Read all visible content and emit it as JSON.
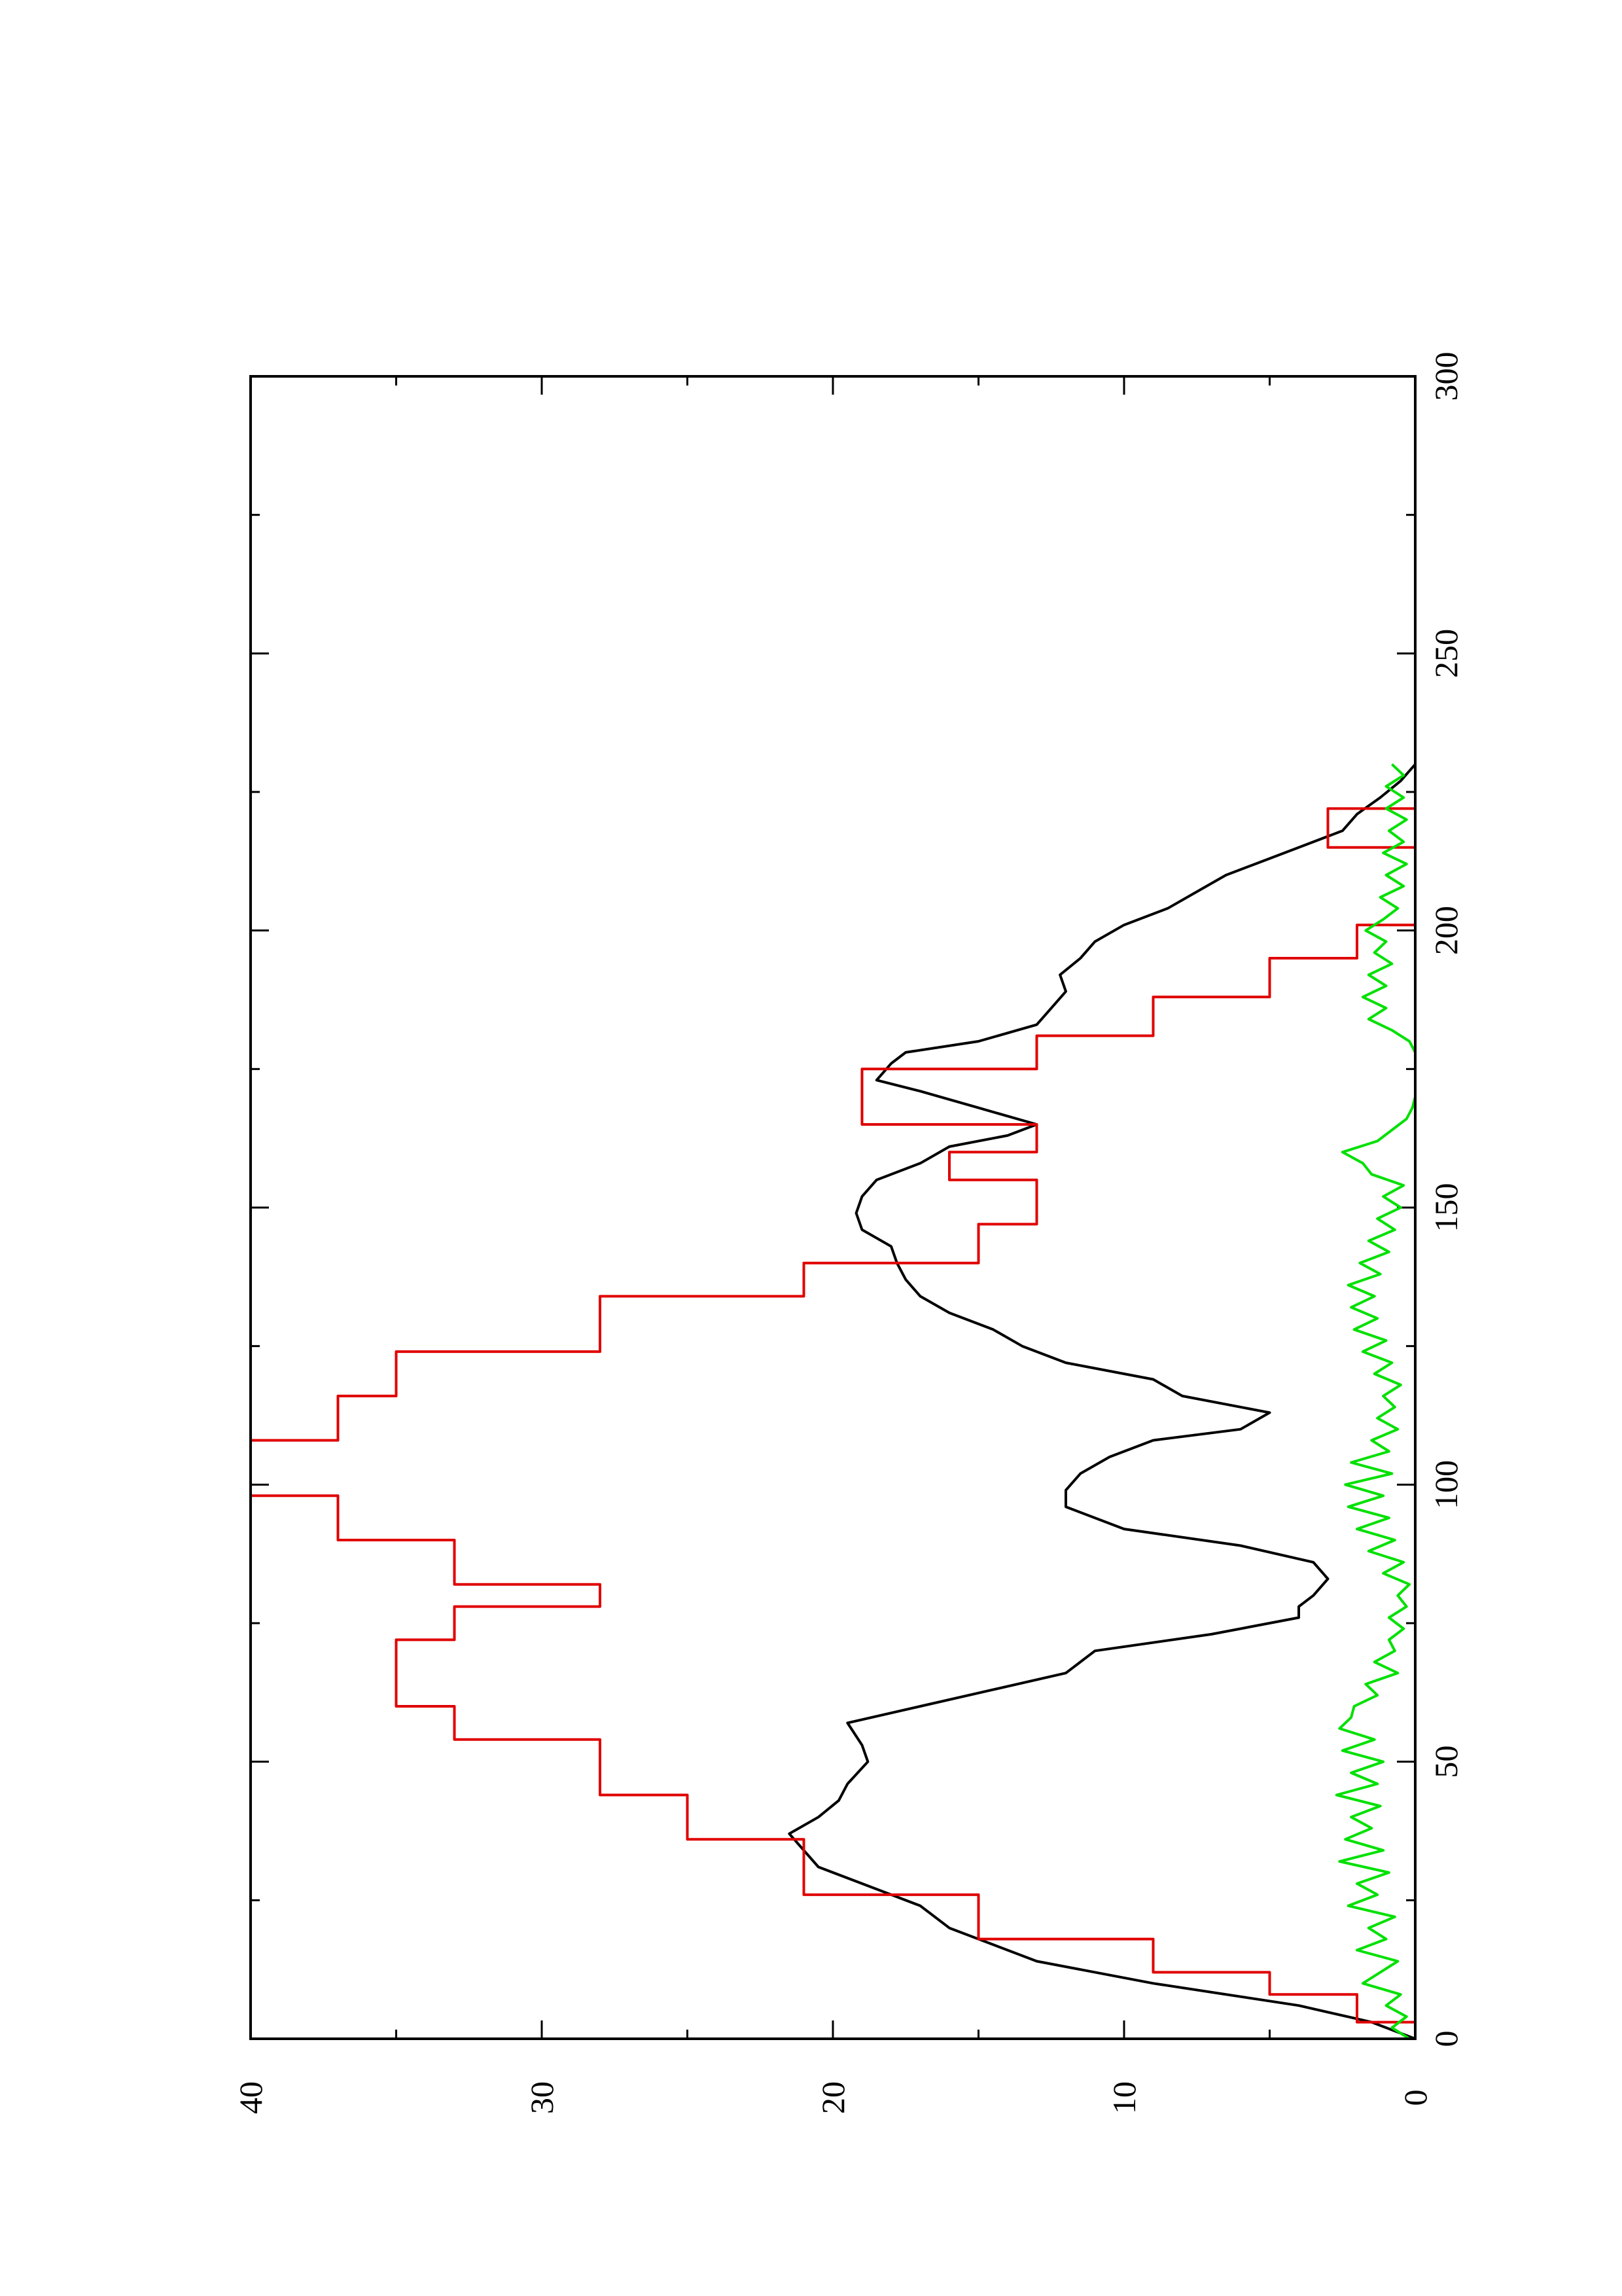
{
  "chart_data": {
    "type": "line",
    "title": "",
    "xlabel": "",
    "ylabel": "",
    "orientation": "rotated-90-clockwise",
    "xlim": [
      0,
      300
    ],
    "ylim": [
      0,
      40
    ],
    "x_ticks": [
      "0",
      "50",
      "100",
      "150",
      "200",
      "250",
      "300"
    ],
    "y_ticks": [
      "0",
      "10",
      "20",
      "30",
      "40"
    ],
    "grid": false,
    "legend": "none",
    "series": [
      {
        "color": "#000000",
        "points": [
          [
            0,
            0
          ],
          [
            3,
            1.5
          ],
          [
            6,
            4
          ],
          [
            10,
            9
          ],
          [
            14,
            13
          ],
          [
            17,
            14.5
          ],
          [
            20,
            16
          ],
          [
            24,
            17
          ],
          [
            27,
            18.5
          ],
          [
            31,
            20.5
          ],
          [
            34,
            21
          ],
          [
            37,
            21.5
          ],
          [
            40,
            20.5
          ],
          [
            43,
            19.8
          ],
          [
            46,
            19.5
          ],
          [
            50,
            18.8
          ],
          [
            53,
            19
          ],
          [
            57,
            19.5
          ],
          [
            60,
            17
          ],
          [
            63,
            14.5
          ],
          [
            66,
            12
          ],
          [
            70,
            11
          ],
          [
            73,
            7
          ],
          [
            76,
            4
          ],
          [
            78,
            4
          ],
          [
            80,
            3.5
          ],
          [
            83,
            3
          ],
          [
            86,
            3.5
          ],
          [
            89,
            6
          ],
          [
            92,
            10
          ],
          [
            96,
            12
          ],
          [
            99,
            12
          ],
          [
            102,
            11.5
          ],
          [
            105,
            10.5
          ],
          [
            108,
            9
          ],
          [
            110,
            6
          ],
          [
            113,
            5
          ],
          [
            116,
            8
          ],
          [
            119,
            9
          ],
          [
            122,
            12
          ],
          [
            125,
            13.5
          ],
          [
            128,
            14.5
          ],
          [
            131,
            16
          ],
          [
            134,
            17
          ],
          [
            137,
            17.5
          ],
          [
            140,
            17.8
          ],
          [
            143,
            18
          ],
          [
            146,
            19
          ],
          [
            149,
            19.2
          ],
          [
            152,
            19
          ],
          [
            155,
            18.5
          ],
          [
            158,
            17
          ],
          [
            161,
            16
          ],
          [
            163,
            14
          ],
          [
            165,
            13
          ],
          [
            168,
            15
          ],
          [
            171,
            17
          ],
          [
            173,
            18.5
          ],
          [
            176,
            18
          ],
          [
            178,
            17.5
          ],
          [
            180,
            15
          ],
          [
            183,
            13
          ],
          [
            186,
            12.5
          ],
          [
            189,
            12
          ],
          [
            192,
            12.2
          ],
          [
            195,
            11.5
          ],
          [
            198,
            11
          ],
          [
            201,
            10
          ],
          [
            204,
            8.5
          ],
          [
            207,
            7.5
          ],
          [
            210,
            6.5
          ],
          [
            212,
            5.5
          ],
          [
            215,
            4
          ],
          [
            218,
            2.5
          ],
          [
            221,
            2
          ],
          [
            224,
            1.2
          ],
          [
            227,
            0.5
          ],
          [
            230,
            0
          ]
        ]
      },
      {
        "color": "#e00000",
        "points": [
          [
            0,
            0
          ],
          [
            3,
            0
          ],
          [
            3,
            2
          ],
          [
            8,
            2
          ],
          [
            8,
            5
          ],
          [
            12,
            5
          ],
          [
            12,
            9
          ],
          [
            18,
            9
          ],
          [
            18,
            15
          ],
          [
            26,
            15
          ],
          [
            26,
            21
          ],
          [
            36,
            21
          ],
          [
            36,
            25
          ],
          [
            44,
            25
          ],
          [
            44,
            28
          ],
          [
            54,
            28
          ],
          [
            54,
            33
          ],
          [
            60,
            33
          ],
          [
            60,
            35
          ],
          [
            72,
            35
          ],
          [
            72,
            33
          ],
          [
            78,
            33
          ],
          [
            78,
            28
          ],
          [
            82,
            28
          ],
          [
            82,
            33
          ],
          [
            90,
            33
          ],
          [
            90,
            37
          ],
          [
            98,
            37
          ],
          [
            98,
            40
          ],
          [
            108,
            40
          ],
          [
            108,
            37
          ],
          [
            116,
            37
          ],
          [
            116,
            35
          ],
          [
            124,
            35
          ],
          [
            124,
            28
          ],
          [
            134,
            28
          ],
          [
            134,
            21
          ],
          [
            140,
            21
          ],
          [
            140,
            15
          ],
          [
            147,
            15
          ],
          [
            147,
            13
          ],
          [
            155,
            13
          ],
          [
            155,
            16
          ],
          [
            160,
            16
          ],
          [
            160,
            13
          ],
          [
            165,
            13
          ],
          [
            165,
            19
          ],
          [
            175,
            19
          ],
          [
            175,
            13
          ],
          [
            181,
            13
          ],
          [
            181,
            9
          ],
          [
            188,
            9
          ],
          [
            188,
            5
          ],
          [
            195,
            5
          ],
          [
            195,
            2
          ],
          [
            201,
            2
          ],
          [
            201,
            0
          ],
          [
            215,
            0
          ],
          [
            215,
            3
          ],
          [
            222,
            3
          ],
          [
            222,
            0
          ],
          [
            230,
            0
          ]
        ]
      },
      {
        "color": "#00e000",
        "points": [
          [
            0,
            0.2
          ],
          [
            2,
            0.8
          ],
          [
            4,
            0.3
          ],
          [
            6,
            1
          ],
          [
            8,
            0.5
          ],
          [
            10,
            1.8
          ],
          [
            12,
            1.2
          ],
          [
            14,
            0.6
          ],
          [
            16,
            2
          ],
          [
            18,
            1
          ],
          [
            20,
            1.6
          ],
          [
            22,
            0.7
          ],
          [
            24,
            2.3
          ],
          [
            26,
            1.3
          ],
          [
            28,
            2
          ],
          [
            30,
            0.9
          ],
          [
            32,
            2.6
          ],
          [
            34,
            1.1
          ],
          [
            36,
            2.4
          ],
          [
            38,
            1.5
          ],
          [
            40,
            2.2
          ],
          [
            42,
            1.2
          ],
          [
            44,
            2.7
          ],
          [
            46,
            1.3
          ],
          [
            48,
            2.2
          ],
          [
            50,
            1.1
          ],
          [
            52,
            2.5
          ],
          [
            54,
            1.4
          ],
          [
            56,
            2.6
          ],
          [
            58,
            2.2
          ],
          [
            60,
            2.1
          ],
          [
            62,
            1.3
          ],
          [
            64,
            1.7
          ],
          [
            66,
            0.6
          ],
          [
            68,
            1.4
          ],
          [
            70,
            0.7
          ],
          [
            72,
            0.9
          ],
          [
            74,
            0.4
          ],
          [
            76,
            0.9
          ],
          [
            78,
            0.3
          ],
          [
            80,
            0.6
          ],
          [
            82,
            0.2
          ],
          [
            84,
            1.1
          ],
          [
            86,
            0.4
          ],
          [
            88,
            1.6
          ],
          [
            90,
            0.7
          ],
          [
            92,
            2
          ],
          [
            94,
            0.9
          ],
          [
            96,
            2.3
          ],
          [
            98,
            1.1
          ],
          [
            100,
            2.4
          ],
          [
            102,
            0.8
          ],
          [
            104,
            2.2
          ],
          [
            106,
            0.9
          ],
          [
            108,
            1.5
          ],
          [
            110,
            0.6
          ],
          [
            112,
            1.3
          ],
          [
            114,
            0.7
          ],
          [
            116,
            1.1
          ],
          [
            118,
            0.5
          ],
          [
            120,
            1.4
          ],
          [
            122,
            0.8
          ],
          [
            124,
            1.8
          ],
          [
            126,
            1
          ],
          [
            128,
            2.1
          ],
          [
            130,
            1.3
          ],
          [
            132,
            2.2
          ],
          [
            134,
            1.4
          ],
          [
            136,
            2.3
          ],
          [
            138,
            1.2
          ],
          [
            140,
            1.9
          ],
          [
            142,
            0.9
          ],
          [
            144,
            1.6
          ],
          [
            146,
            0.7
          ],
          [
            148,
            1.3
          ],
          [
            150,
            0.5
          ],
          [
            152,
            1.1
          ],
          [
            154,
            0.4
          ],
          [
            156,
            1.5
          ],
          [
            158,
            1.8
          ],
          [
            160,
            2.5
          ],
          [
            162,
            1.3
          ],
          [
            164,
            0.8
          ],
          [
            166,
            0.3
          ],
          [
            168,
            0.1
          ],
          [
            170,
            0
          ],
          [
            174,
            0
          ],
          [
            178,
            0
          ],
          [
            180,
            0.2
          ],
          [
            182,
            0.8
          ],
          [
            184,
            1.6
          ],
          [
            186,
            1
          ],
          [
            188,
            1.8
          ],
          [
            190,
            1
          ],
          [
            192,
            1.6
          ],
          [
            194,
            0.8
          ],
          [
            196,
            1.4
          ],
          [
            198,
            1
          ],
          [
            200,
            1.7
          ],
          [
            202,
            1.1
          ],
          [
            204,
            0.6
          ],
          [
            206,
            1.2
          ],
          [
            208,
            0.4
          ],
          [
            210,
            1
          ],
          [
            212,
            0.3
          ],
          [
            214,
            1.1
          ],
          [
            216,
            0.4
          ],
          [
            218,
            0.9
          ],
          [
            220,
            0.3
          ],
          [
            222,
            1
          ],
          [
            224,
            0.4
          ],
          [
            226,
            1
          ],
          [
            228,
            0.4
          ],
          [
            230,
            0.8
          ]
        ]
      }
    ]
  }
}
